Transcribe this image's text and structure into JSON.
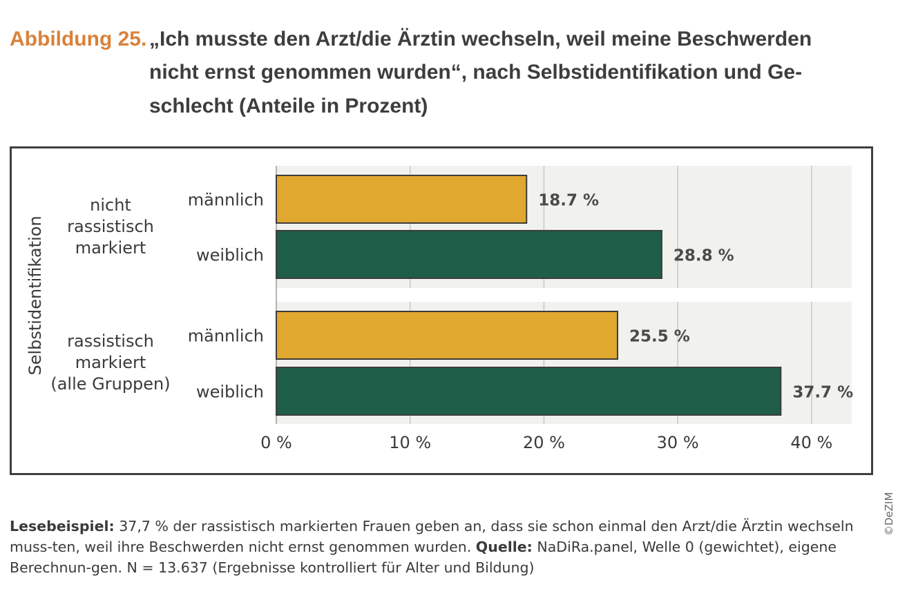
{
  "figure": {
    "number": "Abbildung 25.",
    "title_lines": [
      "„Ich musste den Arzt/die Ärztin wechseln, weil meine Beschwerden",
      "nicht ernst genommen wurden“, nach Selbstidentifikation und Ge-",
      "schlecht (Anteile in Prozent)"
    ]
  },
  "chart_data": {
    "type": "bar",
    "orientation": "horizontal",
    "y_axis_title": "Selbstidentifikation",
    "xlim": [
      0,
      43
    ],
    "x_ticks": [
      0,
      10,
      20,
      30,
      40
    ],
    "x_tick_labels": [
      "0 %",
      "10 %",
      "20 %",
      "30 %",
      "40 %"
    ],
    "grid": true,
    "groups": [
      {
        "label_lines": [
          "nicht",
          "rassistisch",
          "markiert"
        ],
        "bars": [
          {
            "category": "männlich",
            "value": 18.7,
            "label": "18.7 %"
          },
          {
            "category": "weiblich",
            "value": 28.8,
            "label": "28.8 %"
          }
        ]
      },
      {
        "label_lines": [
          "rassistisch",
          "markiert",
          "(alle Gruppen)"
        ],
        "bars": [
          {
            "category": "männlich",
            "value": 25.5,
            "label": "25.5 %"
          },
          {
            "category": "weiblich",
            "value": 37.7,
            "label": "37.7 %"
          }
        ]
      }
    ],
    "colors": {
      "männlich": "#e0a82e",
      "weiblich": "#1e5e48",
      "bar_border": "#3c3c3c",
      "panel_bg": "#f1f2ee",
      "grid": "#c8c8c8"
    }
  },
  "credit": "©DeZIM",
  "note": {
    "lead": "Lesebeispiel:",
    "text1": " 37,7 % der rassistisch markierten Frauen geben an, dass sie schon einmal den Arzt/die Ärztin wechseln muss-ten, weil ihre Beschwerden nicht ernst genommen wurden. ",
    "source_label": "Quelle:",
    "text2": " NaDiRa.panel, Welle 0 (gewichtet), eigene Berechnun-gen. N = 13.637 (Ergebnisse kontrolliert für Alter und Bildung)"
  }
}
